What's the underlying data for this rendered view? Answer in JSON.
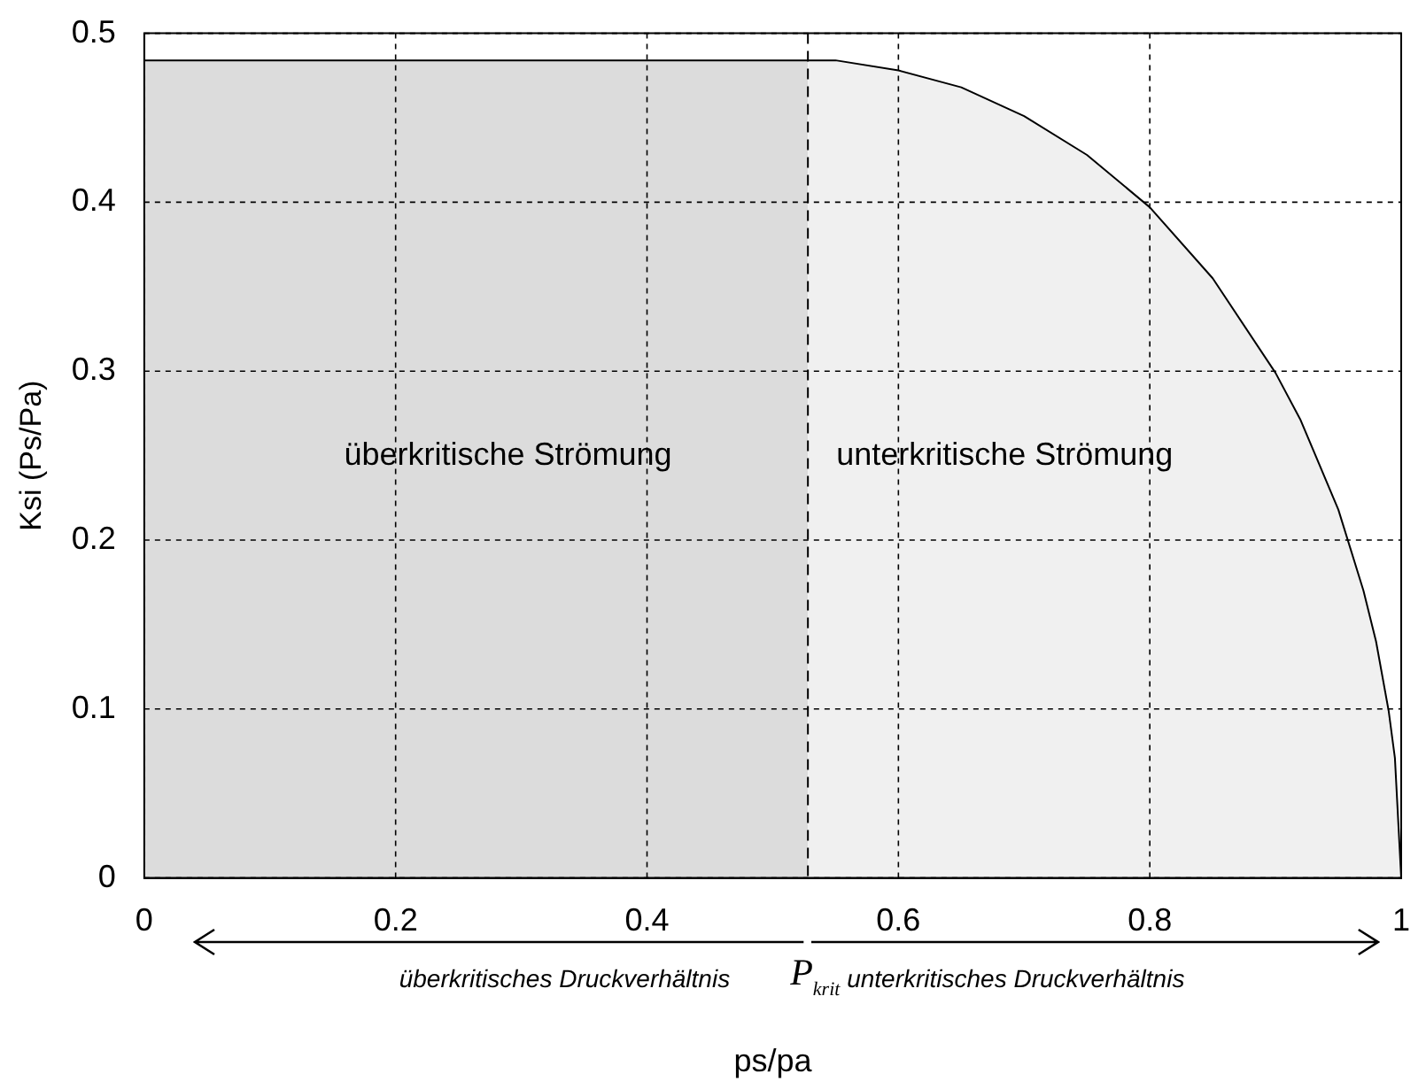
{
  "chart_data": {
    "type": "area",
    "xlabel": "ps/pa",
    "ylabel": "Ksi (Ps/Pa)",
    "series": [
      {
        "color": "#dcdcdc",
        "x": [
          0,
          0.528
        ],
        "values": [
          0.484,
          0.484
        ]
      },
      {
        "color": "#f0f0f0",
        "x": [
          0.528,
          0.55,
          0.6,
          0.65,
          0.7,
          0.75,
          0.8,
          0.85,
          0.9,
          0.92,
          0.95,
          0.97,
          0.98,
          0.99,
          0.995,
          1
        ],
        "values": [
          0.484,
          0.484,
          0.478,
          0.468,
          0.451,
          0.428,
          0.397,
          0.355,
          0.299,
          0.271,
          0.218,
          0.17,
          0.14,
          0.099,
          0.071,
          0
        ]
      }
    ],
    "xlim": [
      0,
      1
    ],
    "ylim": [
      0,
      0.5
    ],
    "xticks": [
      0,
      0.2,
      0.4,
      0.6,
      0.8,
      1
    ],
    "yticks": [
      0,
      0.1,
      0.2,
      0.3,
      0.4,
      0.5
    ],
    "grid": true,
    "marker": "none",
    "line_style": "solid",
    "ref_lines": [
      {
        "axis": "x",
        "value": 0.528,
        "label": "P$_{krit}$",
        "line_style": "dashed"
      }
    ],
    "annotations": [
      "überkritische Strömung",
      "unterkritische Strömung",
      "überkritisches Druckverhältnis",
      "unterkritisches Druckverhältnis"
    ]
  }
}
